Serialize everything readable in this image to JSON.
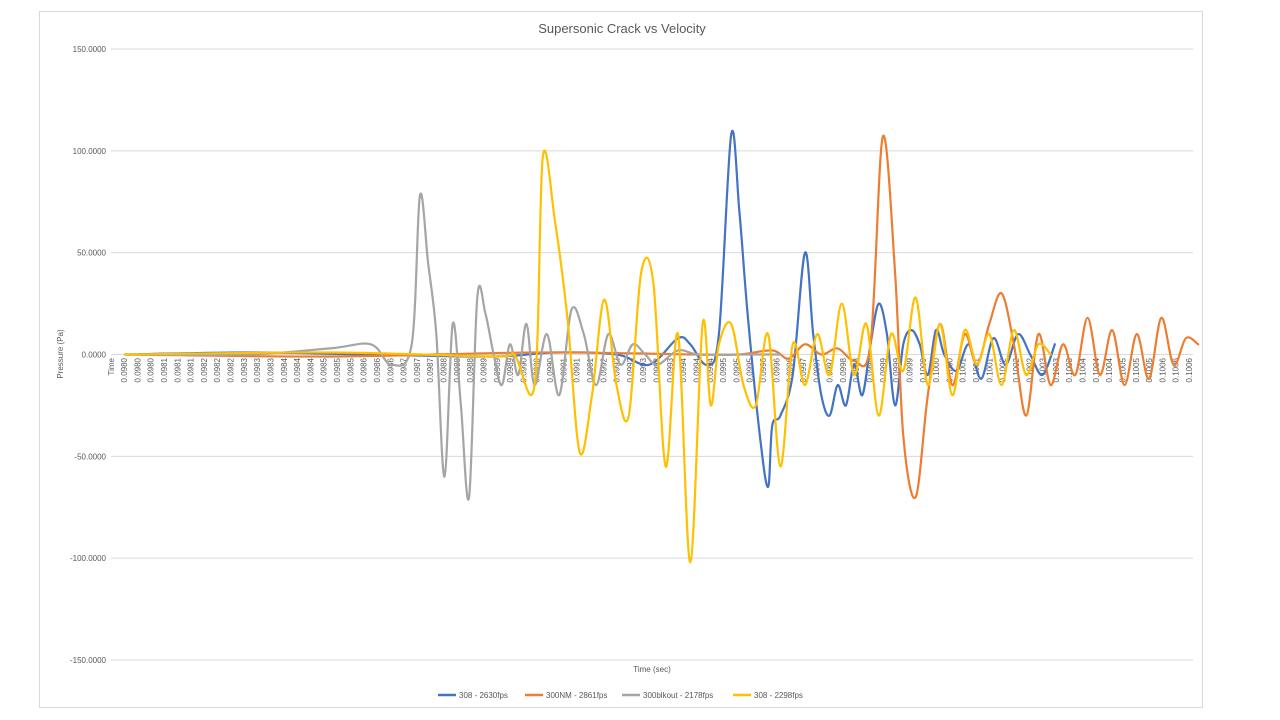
{
  "chart_data": {
    "type": "line",
    "title": "Supersonic Crack vs Velocity",
    "xlabel": "Time (sec)",
    "ylabel": "Pressure (Pa)",
    "ylim": [
      -150,
      150
    ],
    "yticks": [
      "150.0000",
      "100.0000",
      "50.0000",
      "0.0000",
      "-50.0000",
      "-100.0000",
      "-150.0000"
    ],
    "ytick_values": [
      150,
      100,
      50,
      0,
      -50,
      -100,
      -150
    ],
    "xlim": [
      0.098,
      0.1006
    ],
    "x_axis_first_label": "Time",
    "x_tick_labels": [
      "0.0980",
      "0.0980",
      "0.0980",
      "0.0981",
      "0.0981",
      "0.0981",
      "0.0982",
      "0.0982",
      "0.0982",
      "0.0983",
      "0.0983",
      "0.0983",
      "0.0984",
      "0.0984",
      "0.0984",
      "0.0985",
      "0.0985",
      "0.0985",
      "0.0986",
      "0.0986",
      "0.0986",
      "0.0987",
      "0.0987",
      "0.0987",
      "0.0988",
      "0.0988",
      "0.0988",
      "0.0989",
      "0.0989",
      "0.0989",
      "0.0990",
      "0.0990",
      "0.0990",
      "0.0991",
      "0.0991",
      "0.0991",
      "0.0992",
      "0.0992",
      "0.0992",
      "0.0993",
      "0.0993",
      "0.0993",
      "0.0994",
      "0.0994",
      "0.0994",
      "0.0995",
      "0.0995",
      "0.0995",
      "0.0996",
      "0.0996",
      "0.0996",
      "0.0997",
      "0.0997",
      "0.0997",
      "0.0998",
      "0.0998",
      "0.0998",
      "0.0999",
      "0.0999",
      "0.0999",
      "0.1000",
      "0.1000",
      "0.1000",
      "0.1001",
      "0.1001",
      "0.1001",
      "0.1002",
      "0.1002",
      "0.1002",
      "0.1003",
      "0.1003",
      "0.1003",
      "0.1004",
      "0.1004",
      "0.1004",
      "0.1005",
      "0.1005",
      "0.1005",
      "0.1006",
      "0.1006",
      "0.1006"
    ],
    "grid": true,
    "legend_position": "bottom",
    "series": [
      {
        "name": "308 - 2630fps",
        "color": "#4472c4",
        "x": [
          0.098,
          0.0983,
          0.0986,
          0.0989,
          0.09905,
          0.0992,
          0.09928,
          0.09935,
          0.09938,
          0.09942,
          0.09945,
          0.09948,
          0.0995,
          0.09952,
          0.09955,
          0.09957,
          0.09958,
          0.0996,
          0.09963,
          0.09966,
          0.09968,
          0.0997,
          0.09972,
          0.09974,
          0.09976,
          0.09978,
          0.0998,
          0.09982,
          0.09984,
          0.09986,
          0.09988,
          0.0999,
          0.09992,
          0.09994,
          0.09996,
          0.09998,
          0.1,
          0.10003,
          0.10006,
          0.10009,
          0.10012,
          0.10015,
          0.10018,
          0.10021,
          0.10024,
          0.10027
        ],
        "y": [
          0,
          1,
          0,
          -1,
          1,
          0,
          -5,
          8,
          5,
          -5,
          10,
          108,
          70,
          20,
          -40,
          -65,
          -35,
          -30,
          -10,
          50,
          10,
          -20,
          -30,
          -15,
          -25,
          -5,
          -20,
          5,
          25,
          10,
          -25,
          5,
          12,
          5,
          -10,
          12,
          0,
          -8,
          5,
          -12,
          8,
          -5,
          10,
          0,
          -10,
          5
        ]
      },
      {
        "name": "300NM - 2861fps",
        "color": "#ed7d31",
        "x": [
          0.098,
          0.0985,
          0.099,
          0.0994,
          0.0995,
          0.09958,
          0.09962,
          0.09966,
          0.0997,
          0.09974,
          0.09978,
          0.09982,
          0.09985,
          0.09988,
          0.0999,
          0.09993,
          0.09996,
          0.09999,
          0.10002,
          0.10005,
          0.10008,
          0.10011,
          0.10014,
          0.10017,
          0.1002,
          0.10023,
          0.10026,
          0.10029,
          0.10032,
          0.10035,
          0.10038,
          0.10041,
          0.10044,
          0.10047,
          0.1005,
          0.10053,
          0.10056,
          0.10059,
          0.10062
        ],
        "y": [
          0,
          -1,
          1,
          0,
          0,
          2,
          -2,
          5,
          0,
          3,
          -3,
          5,
          107,
          40,
          -40,
          -70,
          -20,
          15,
          -15,
          10,
          -5,
          15,
          30,
          5,
          -30,
          10,
          -15,
          5,
          -10,
          18,
          -10,
          12,
          -15,
          10,
          -12,
          18,
          -5,
          8,
          5
        ]
      },
      {
        "name": "300blkout - 2178fps",
        "color": "#a5a5a5",
        "x": [
          0.098,
          0.0983,
          0.0985,
          0.0986,
          0.09865,
          0.0987,
          0.09872,
          0.09874,
          0.09876,
          0.09878,
          0.0988,
          0.09882,
          0.09884,
          0.09886,
          0.09888,
          0.0989,
          0.09892,
          0.09894,
          0.09896,
          0.09898,
          0.099,
          0.09903,
          0.09906,
          0.09909,
          0.09912,
          0.09915,
          0.09918,
          0.09921,
          0.09924,
          0.09927,
          0.0993,
          0.09935,
          0.0994,
          0.0995,
          0.0996
        ],
        "y": [
          0,
          0,
          3,
          5,
          -5,
          5,
          78,
          45,
          10,
          -60,
          15,
          -25,
          -70,
          28,
          20,
          0,
          -15,
          5,
          -10,
          15,
          -15,
          10,
          -20,
          22,
          10,
          -15,
          10,
          -5,
          5,
          0,
          -5,
          2,
          0,
          0,
          0
        ]
      },
      {
        "name": "308 - 2298fps",
        "color": "#ffc000",
        "x": [
          0.098,
          0.0985,
          0.0989,
          0.09895,
          0.099,
          0.09902,
          0.09905,
          0.09908,
          0.09911,
          0.09914,
          0.09917,
          0.0992,
          0.09923,
          0.09926,
          0.09929,
          0.09932,
          0.09935,
          0.09938,
          0.09941,
          0.09943,
          0.09945,
          0.09948,
          0.09951,
          0.09954,
          0.09957,
          0.0996,
          0.09963,
          0.09966,
          0.09969,
          0.09972,
          0.09975,
          0.09978,
          0.09981,
          0.09984,
          0.09987,
          0.0999,
          0.09993,
          0.09996,
          0.09999,
          0.10002,
          0.10005,
          0.10008,
          0.10011,
          0.10014,
          0.10017,
          0.1002,
          0.10023,
          0.10026
        ],
        "y": [
          0,
          1,
          -1,
          0,
          -15,
          97,
          65,
          18,
          -48,
          -20,
          27,
          -15,
          -30,
          40,
          35,
          -55,
          10,
          -102,
          15,
          -25,
          5,
          15,
          -15,
          -25,
          10,
          -55,
          5,
          -15,
          10,
          -10,
          25,
          -10,
          15,
          -30,
          10,
          -8,
          28,
          -15,
          15,
          -20,
          12,
          -5,
          10,
          -15,
          12,
          -10,
          5,
          0
        ]
      }
    ]
  }
}
